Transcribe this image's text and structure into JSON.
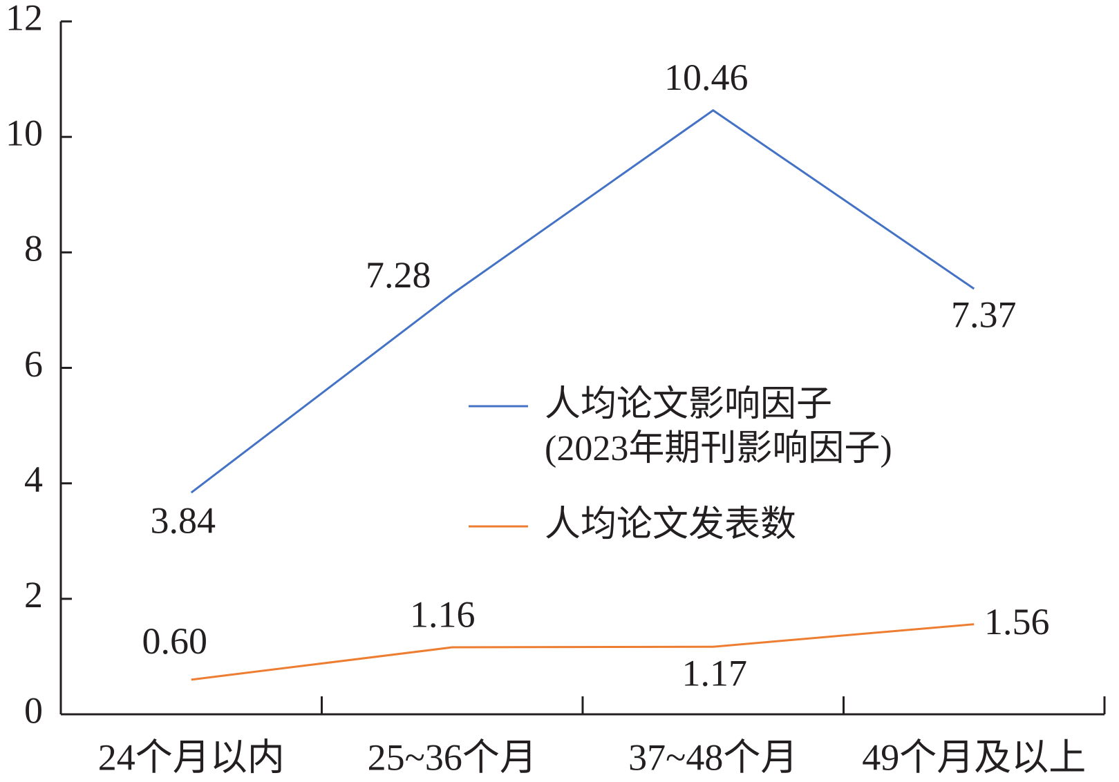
{
  "chart_data": {
    "type": "line",
    "categories": [
      "24个月以内",
      "25~36个月",
      "37~48个月",
      "49个月及以上"
    ],
    "series": [
      {
        "name": "人均论文影响因子\n(2023年期刊影响因子)",
        "color": "#4472c4",
        "values": [
          3.84,
          7.28,
          10.46,
          7.37
        ],
        "value_labels": [
          "3.84",
          "7.28",
          "10.46",
          "7.37"
        ]
      },
      {
        "name": "人均论文发表数",
        "color": "#ed7d31",
        "values": [
          0.6,
          1.16,
          1.17,
          1.56
        ],
        "value_labels": [
          "0.60",
          "1.16",
          "1.17",
          "1.56"
        ]
      }
    ],
    "ylim": [
      0,
      12
    ],
    "yticks": [
      0,
      2,
      4,
      6,
      8,
      10,
      12
    ],
    "grid": false
  }
}
